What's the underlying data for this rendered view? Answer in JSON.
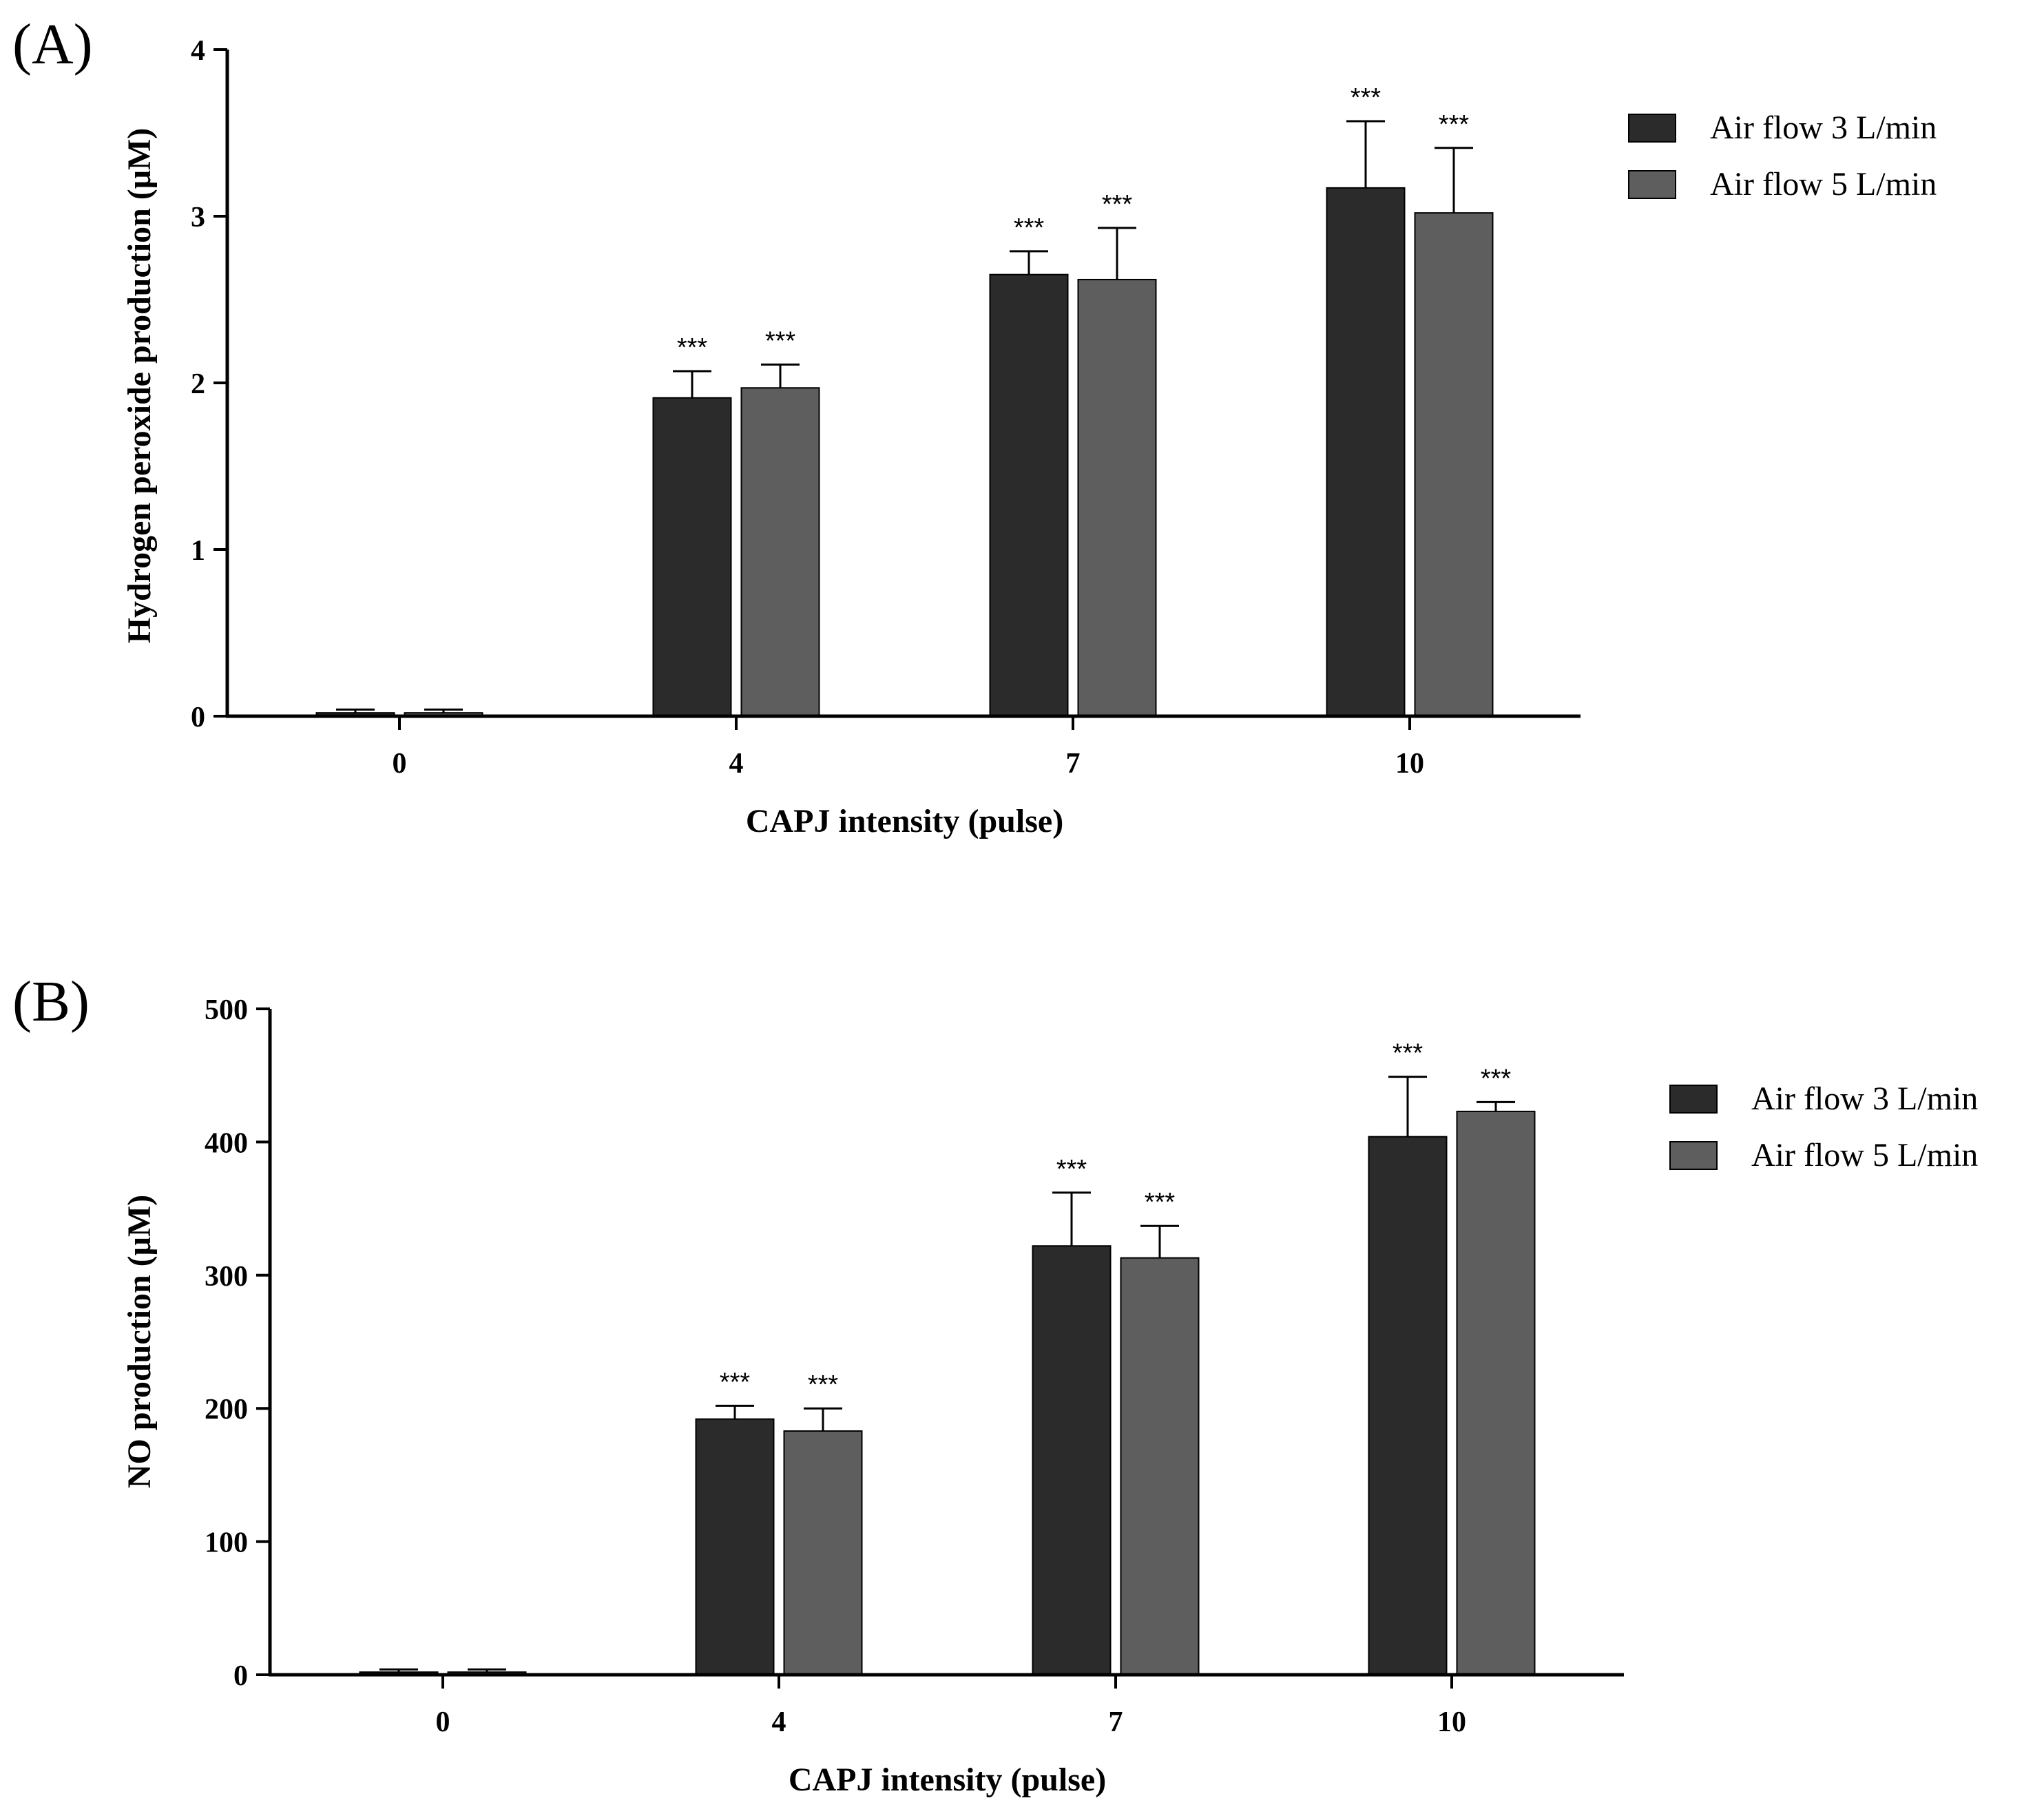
{
  "chart_data": [
    {
      "type": "bar",
      "panel_label": "(A)",
      "categories": [
        "0",
        "4",
        "7",
        "10"
      ],
      "xlabel": "CAPJ intensity (pulse)",
      "ylabel": "Hydrogen peroxide production (μM)",
      "ylim": [
        0,
        4
      ],
      "yticks": [
        "0",
        "1",
        "2",
        "3",
        "4"
      ],
      "grid": false,
      "legend_position": "top-right",
      "series": [
        {
          "name": "Air flow 3 L/min",
          "color": "#2b2b2b",
          "values": [
            0.02,
            1.91,
            2.65,
            3.17
          ],
          "errors": [
            0.02,
            0.16,
            0.14,
            0.4
          ],
          "significance": [
            "",
            "***",
            "***",
            "***"
          ]
        },
        {
          "name": "Air flow 5 L/min",
          "color": "#5e5e5e",
          "values": [
            0.02,
            1.97,
            2.62,
            3.02
          ],
          "errors": [
            0.02,
            0.14,
            0.31,
            0.39
          ],
          "significance": [
            "",
            "***",
            "***",
            "***"
          ]
        }
      ]
    },
    {
      "type": "bar",
      "panel_label": "(B)",
      "categories": [
        "0",
        "4",
        "7",
        "10"
      ],
      "xlabel": "CAPJ intensity (pulse)",
      "ylabel": "NO production (μM)",
      "ylim": [
        0,
        500
      ],
      "yticks": [
        "0",
        "100",
        "200",
        "300",
        "400",
        "500"
      ],
      "grid": false,
      "legend_position": "top-right",
      "series": [
        {
          "name": "Air flow 3 L/min",
          "color": "#2b2b2b",
          "values": [
            2,
            192,
            322,
            404
          ],
          "errors": [
            2,
            10,
            40,
            45
          ],
          "significance": [
            "",
            "***",
            "***",
            "***"
          ]
        },
        {
          "name": "Air flow 5 L/min",
          "color": "#5e5e5e",
          "values": [
            2,
            183,
            313,
            423
          ],
          "errors": [
            2,
            17,
            24,
            7
          ],
          "significance": [
            "",
            "***",
            "***",
            "***"
          ]
        }
      ]
    }
  ]
}
